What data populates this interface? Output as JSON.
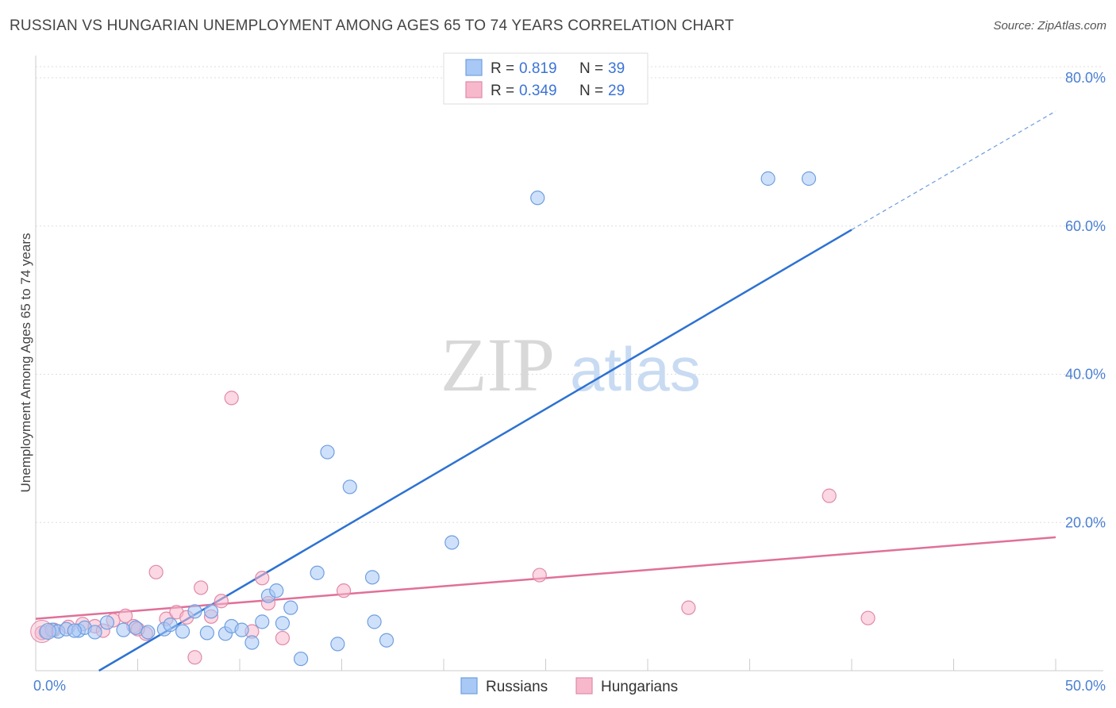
{
  "header": {
    "title": "RUSSIAN VS HUNGARIAN UNEMPLOYMENT AMONG AGES 65 TO 74 YEARS CORRELATION CHART",
    "source": "Source: ZipAtlas.com"
  },
  "watermark": {
    "zip": "ZIP",
    "atlas": "atlas"
  },
  "legend": {
    "rows": [
      {
        "r_label": "R =",
        "r_value": "0.819",
        "n_label": "N =",
        "n_value": "39",
        "color": "#a8c8f5",
        "stroke": "#6f9fe0"
      },
      {
        "r_label": "R =",
        "r_value": "0.349",
        "n_label": "N =",
        "n_value": "29",
        "color": "#f7b8cc",
        "stroke": "#e08aa8"
      }
    ]
  },
  "bottom_legend": {
    "items": [
      "Russians",
      "Hungarians"
    ]
  },
  "chart_data": {
    "type": "scatter",
    "title": "RUSSIAN VS HUNGARIAN UNEMPLOYMENT AMONG AGES 65 TO 74 YEARS CORRELATION CHART",
    "xlabel": "",
    "ylabel": "Unemployment Among Ages 65 to 74 years",
    "xlim": [
      0,
      50
    ],
    "ylim": [
      0,
      83
    ],
    "x_tick_labels": [
      "0.0%",
      "50.0%"
    ],
    "y_tick_labels": [
      "20.0%",
      "40.0%",
      "60.0%",
      "80.0%"
    ],
    "y_tick_values": [
      20,
      40,
      60,
      80
    ],
    "grid": true,
    "legend_position": "top-center",
    "series": [
      {
        "name": "Russians",
        "color": "#a8c8f5",
        "stroke": "#6f9fe0",
        "line_color": "#2d72d2",
        "trend": {
          "x0": 3.1,
          "y0": 0,
          "x1": 40.0,
          "y1": 59.5,
          "x_dash_end": 50.0,
          "y_dash_end": 75.5
        },
        "points": [
          [
            0.5,
            5.2
          ],
          [
            0.8,
            5.5
          ],
          [
            1.1,
            5.3
          ],
          [
            1.5,
            5.6
          ],
          [
            2.1,
            5.4
          ],
          [
            2.4,
            5.8
          ],
          [
            2.9,
            5.2
          ],
          [
            3.5,
            6.5
          ],
          [
            4.3,
            5.5
          ],
          [
            4.9,
            5.8
          ],
          [
            5.5,
            5.2
          ],
          [
            6.3,
            5.6
          ],
          [
            6.6,
            6.2
          ],
          [
            7.2,
            5.3
          ],
          [
            7.8,
            8.0
          ],
          [
            8.4,
            5.1
          ],
          [
            8.6,
            8.0
          ],
          [
            9.3,
            5.0
          ],
          [
            9.6,
            6.0
          ],
          [
            10.1,
            5.5
          ],
          [
            10.6,
            3.8
          ],
          [
            11.1,
            6.6
          ],
          [
            11.4,
            10.1
          ],
          [
            11.8,
            10.8
          ],
          [
            12.1,
            6.4
          ],
          [
            12.5,
            8.5
          ],
          [
            13.0,
            1.6
          ],
          [
            13.8,
            13.2
          ],
          [
            14.3,
            29.5
          ],
          [
            14.8,
            3.6
          ],
          [
            15.4,
            24.8
          ],
          [
            16.5,
            12.6
          ],
          [
            16.6,
            6.6
          ],
          [
            17.2,
            4.1
          ],
          [
            20.4,
            17.3
          ],
          [
            24.6,
            63.8
          ],
          [
            35.9,
            66.4
          ],
          [
            37.9,
            66.4
          ],
          [
            1.9,
            5.4
          ]
        ]
      },
      {
        "name": "Hungarians",
        "color": "#f7b8cc",
        "stroke": "#e08aa8",
        "line_color": "#e07098",
        "trend": {
          "x0": 0,
          "y0": 7.0,
          "x1": 50.0,
          "y1": 18.0
        },
        "points": [
          [
            0.3,
            5.1
          ],
          [
            0.9,
            5.5
          ],
          [
            1.6,
            5.9
          ],
          [
            2.3,
            6.3
          ],
          [
            2.9,
            6.0
          ],
          [
            3.3,
            5.4
          ],
          [
            3.8,
            6.8
          ],
          [
            4.4,
            7.4
          ],
          [
            4.8,
            6.0
          ],
          [
            5.4,
            5.0
          ],
          [
            5.9,
            13.3
          ],
          [
            6.4,
            7.0
          ],
          [
            6.9,
            7.9
          ],
          [
            7.4,
            7.2
          ],
          [
            7.8,
            1.8
          ],
          [
            8.1,
            11.2
          ],
          [
            8.6,
            7.3
          ],
          [
            9.1,
            9.4
          ],
          [
            9.6,
            36.8
          ],
          [
            10.6,
            5.3
          ],
          [
            11.1,
            12.5
          ],
          [
            11.4,
            9.1
          ],
          [
            12.1,
            4.4
          ],
          [
            15.1,
            10.8
          ],
          [
            24.7,
            12.9
          ],
          [
            32.0,
            8.5
          ],
          [
            38.9,
            23.6
          ],
          [
            40.8,
            7.1
          ],
          [
            5.0,
            5.6
          ]
        ]
      }
    ]
  }
}
